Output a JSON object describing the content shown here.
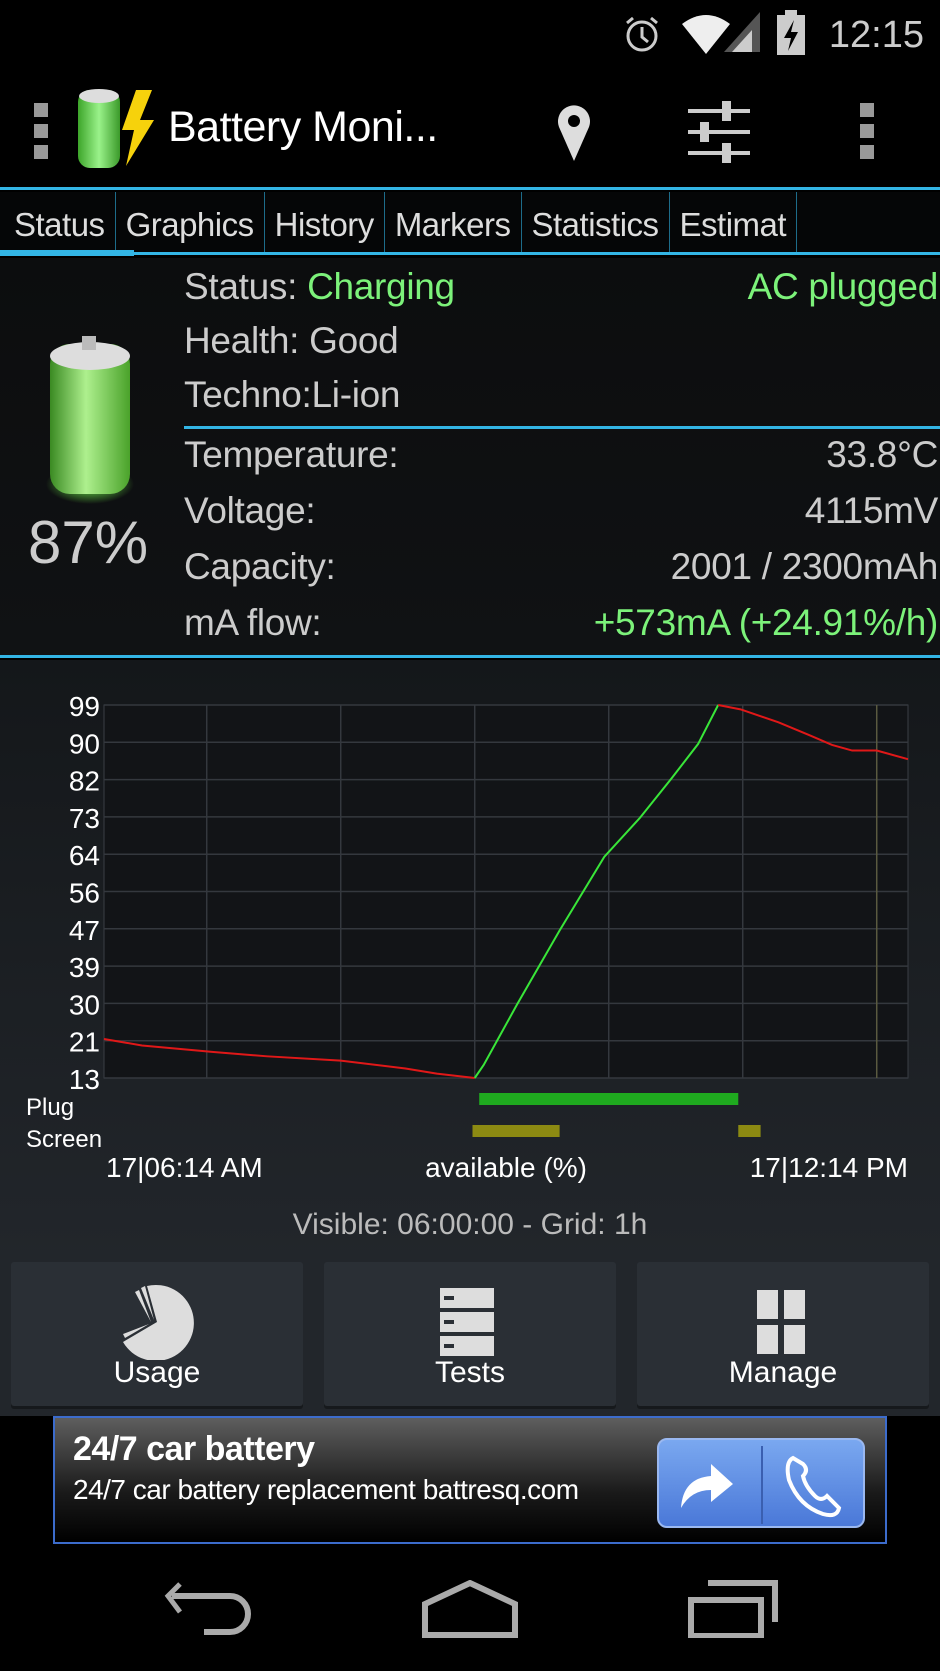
{
  "status_bar": {
    "time": "12:15",
    "icons": [
      "alarm-icon",
      "wifi-icon",
      "signal-icon",
      "battery-charging-icon"
    ]
  },
  "action_bar": {
    "title": "Battery Moni...",
    "icons": [
      "battery-app-logo",
      "location-pin-icon",
      "sliders-icon",
      "overflow-menu-icon"
    ]
  },
  "tabs": [
    {
      "label": "Status",
      "active": true
    },
    {
      "label": "Graphics"
    },
    {
      "label": "History"
    },
    {
      "label": "Markers"
    },
    {
      "label": "Statistics"
    },
    {
      "label": "Estimat"
    }
  ],
  "info": {
    "percent": "87%",
    "status_label": "Status:",
    "status_value": "Charging",
    "plug_value": "AC plugged",
    "health_label": "Health:",
    "health_value": "Good",
    "techno_label": "Techno:",
    "techno_value": "Li-ion",
    "temperature_label": "Temperature:",
    "temperature_value": "33.8°C",
    "voltage_label": "Voltage:",
    "voltage_value": "4115mV",
    "capacity_label": "Capacity:",
    "capacity_value": "2001 / 2300mAh",
    "flow_label": "mA flow:",
    "flow_value": "+573mA (+24.91%/h)",
    "accent_color": "#7cf27a"
  },
  "chart_data": {
    "type": "line",
    "xlabel": "available (%)",
    "x_start_label": "17|06:14 AM",
    "x_end_label": "17|12:14 PM",
    "xlim": [
      "06:14",
      "12:14"
    ],
    "ylim": [
      13,
      99
    ],
    "yticks": [
      "99",
      "90",
      "82",
      "73",
      "64",
      "56",
      "47",
      "39",
      "30",
      "21",
      "13"
    ],
    "grid": true,
    "grid_interval": "1h",
    "series": [
      {
        "color": "#e01818",
        "points": [
          [
            "06:14",
            22
          ],
          [
            "06:31",
            20.5
          ],
          [
            "07:03",
            19
          ],
          [
            "07:27",
            18
          ],
          [
            "08:00",
            17
          ],
          [
            "08:29",
            15.2
          ],
          [
            "08:43",
            14
          ],
          [
            "09:00",
            13
          ]
        ]
      },
      {
        "color": "#39e639",
        "points": [
          [
            "09:00",
            13
          ],
          [
            "09:04",
            16
          ],
          [
            "09:19",
            30
          ],
          [
            "09:38",
            47
          ],
          [
            "09:58",
            64
          ],
          [
            "10:14",
            73
          ],
          [
            "10:28",
            82
          ],
          [
            "10:40",
            90
          ],
          [
            "10:49",
            99
          ]
        ]
      },
      {
        "color": "#e01818",
        "points": [
          [
            "10:49",
            99
          ],
          [
            "10:59",
            98
          ],
          [
            "11:16",
            95
          ],
          [
            "11:30",
            92
          ],
          [
            "11:40",
            89.8
          ],
          [
            "11:49",
            88.5
          ],
          [
            "12:00",
            88.5
          ],
          [
            "12:14",
            86.5
          ]
        ]
      }
    ],
    "tracks": [
      {
        "label": "Plug",
        "color": "#1faa1f",
        "spans": [
          [
            "09:02",
            "10:58"
          ]
        ]
      },
      {
        "label": "Screen",
        "color": "#8c8a12",
        "spans": [
          [
            "08:59",
            "09:38"
          ],
          [
            "10:58",
            "11:08"
          ]
        ]
      }
    ]
  },
  "visible_text": "Visible: 06:00:00 - Grid: 1h",
  "buttons": [
    {
      "label": "Usage",
      "icon": "pie-chart-icon"
    },
    {
      "label": "Tests",
      "icon": "server-list-icon"
    },
    {
      "label": "Manage",
      "icon": "grid-icon"
    }
  ],
  "ad": {
    "title": "24/7 car battery",
    "subtitle": "24/7 car battery replacement battresq.com"
  },
  "nav": [
    "back-icon",
    "home-icon",
    "recent-apps-icon"
  ]
}
